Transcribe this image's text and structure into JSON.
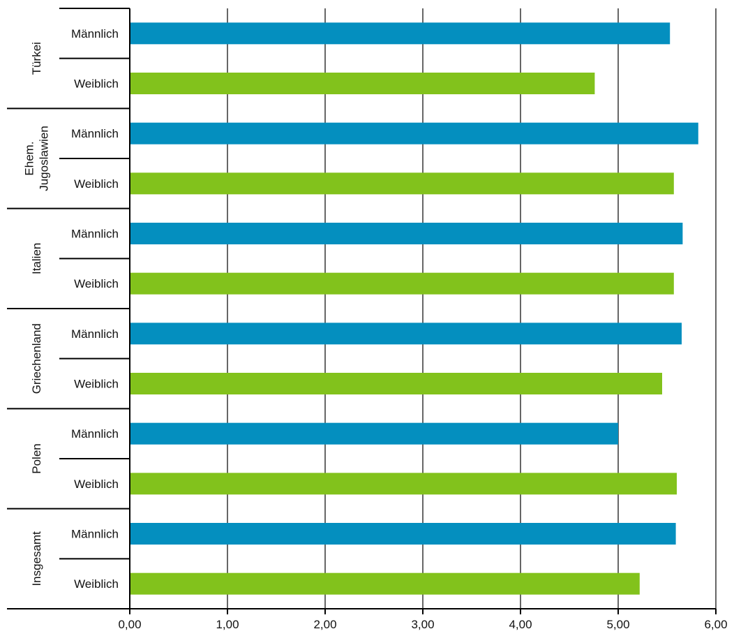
{
  "chart_data": {
    "type": "bar",
    "orientation": "horizontal",
    "xlim": [
      0,
      6
    ],
    "xticks": [
      "0,00",
      "1,00",
      "2,00",
      "3,00",
      "4,00",
      "5,00",
      "6,00"
    ],
    "grid": true,
    "colors": {
      "Männlich": "#048fbf",
      "Weiblich": "#82c21c"
    },
    "groups": [
      {
        "label": [
          "Türkei"
        ],
        "bars": [
          {
            "label": "Männlich",
            "value": 5.53
          },
          {
            "label": "Weiblich",
            "value": 4.76
          }
        ]
      },
      {
        "label": [
          "Ehem.",
          "Jugoslawien"
        ],
        "bars": [
          {
            "label": "Männlich",
            "value": 5.82
          },
          {
            "label": "Weiblich",
            "value": 5.57
          }
        ]
      },
      {
        "label": [
          "Italien"
        ],
        "bars": [
          {
            "label": "Männlich",
            "value": 5.66
          },
          {
            "label": "Weiblich",
            "value": 5.57
          }
        ]
      },
      {
        "label": [
          "Griechenland"
        ],
        "bars": [
          {
            "label": "Männlich",
            "value": 5.65
          },
          {
            "label": "Weiblich",
            "value": 5.45
          }
        ]
      },
      {
        "label": [
          "Polen"
        ],
        "bars": [
          {
            "label": "Männlich",
            "value": 5.0
          },
          {
            "label": "Weiblich",
            "value": 5.6
          }
        ]
      },
      {
        "label": [
          "Insgesamt"
        ],
        "bars": [
          {
            "label": "Männlich",
            "value": 5.59
          },
          {
            "label": "Weiblich",
            "value": 5.22
          }
        ]
      }
    ]
  }
}
